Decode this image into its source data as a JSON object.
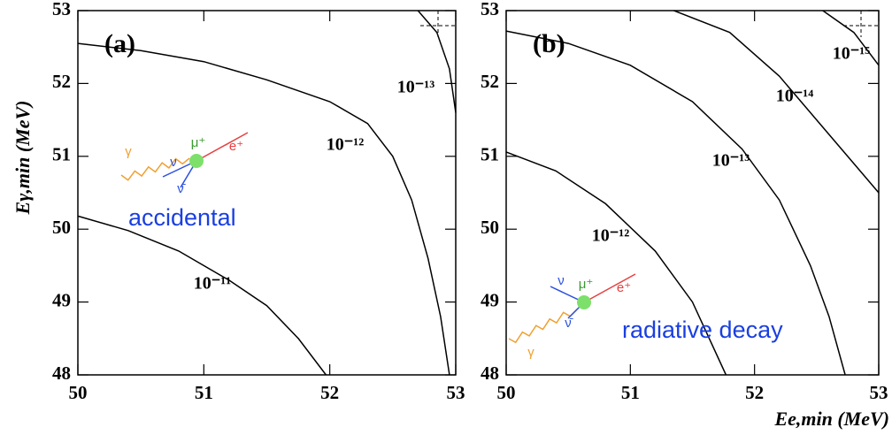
{
  "chart_data": [
    {
      "type": "line",
      "title": "(a)",
      "ylabel": "Eγ,min (MeV)",
      "xlim": [
        50,
        53
      ],
      "ylim": [
        48,
        53
      ],
      "xticks": [
        50,
        51,
        52,
        53
      ],
      "yticks": [
        48,
        49,
        50,
        51,
        52,
        53
      ],
      "series": [
        {
          "name": "10⁻¹¹",
          "color": "#000000",
          "x": [
            50,
            50.4,
            50.8,
            51.2,
            51.5,
            51.75,
            51.97
          ],
          "values": [
            50.18,
            49.98,
            49.7,
            49.3,
            48.95,
            48.5,
            48
          ]
        },
        {
          "name": "10⁻¹²",
          "color": "#000000",
          "x": [
            50,
            50.5,
            51,
            51.5,
            52,
            52.3,
            52.5,
            52.65,
            52.78,
            52.88,
            52.95
          ],
          "values": [
            52.55,
            52.45,
            52.3,
            52.05,
            51.75,
            51.45,
            51.0,
            50.4,
            49.6,
            48.8,
            48
          ]
        },
        {
          "name": "10⁻¹³",
          "color": "#000000",
          "x": [
            52.7,
            52.85,
            52.95,
            53
          ],
          "values": [
            53,
            52.7,
            52.2,
            51.6
          ]
        }
      ],
      "inset": {
        "caption": "accidental",
        "particles": [
          "γ",
          "μ⁺",
          "e⁺",
          "ν",
          "ν̄"
        ]
      }
    },
    {
      "type": "line",
      "title": "(b)",
      "xlabel": "Ee,min (MeV)",
      "xlim": [
        50,
        53
      ],
      "ylim": [
        48,
        53
      ],
      "xticks": [
        50,
        51,
        52,
        53
      ],
      "yticks": [
        48,
        49,
        50,
        51,
        52,
        53
      ],
      "series": [
        {
          "name": "10⁻¹²",
          "color": "#000000",
          "x": [
            50,
            50.4,
            50.8,
            51.2,
            51.5,
            51.77
          ],
          "values": [
            51.06,
            50.8,
            50.35,
            49.7,
            49.0,
            48
          ]
        },
        {
          "name": "10⁻¹³",
          "color": "#000000",
          "x": [
            50,
            50.5,
            51,
            51.5,
            51.9,
            52.2,
            52.45,
            52.6,
            52.73
          ],
          "values": [
            52.72,
            52.55,
            52.25,
            51.75,
            51.1,
            50.4,
            49.5,
            48.8,
            48
          ]
        },
        {
          "name": "10⁻¹⁴",
          "color": "#000000",
          "x": [
            51.35,
            51.8,
            52.2,
            52.5,
            52.8,
            53
          ],
          "values": [
            53,
            52.7,
            52.1,
            51.5,
            50.9,
            50.5
          ]
        },
        {
          "name": "10⁻¹⁵",
          "color": "#000000",
          "x": [
            52.55,
            52.8,
            53
          ],
          "values": [
            53,
            52.7,
            52.25
          ]
        }
      ],
      "inset": {
        "caption": "radiative decay",
        "particles": [
          "γ",
          "μ⁺",
          "e⁺",
          "ν",
          "ν̄"
        ]
      }
    }
  ]
}
